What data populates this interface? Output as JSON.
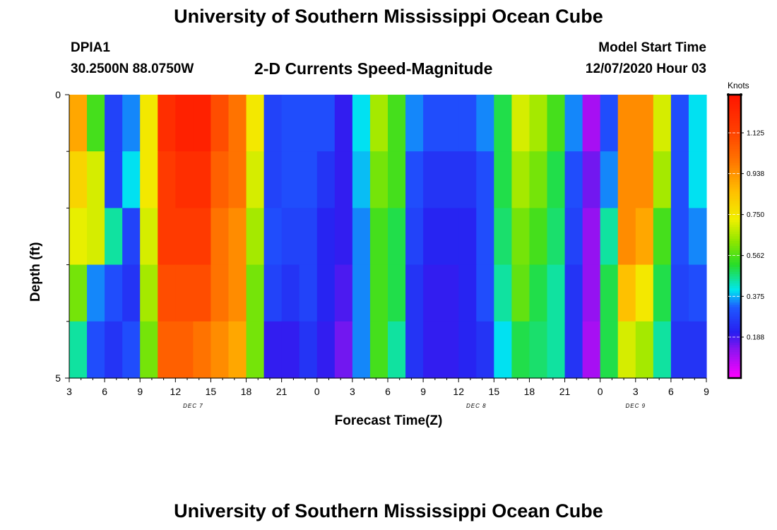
{
  "header": {
    "title": "University of Southern Mississippi Ocean Cube",
    "station": "DPIA1",
    "coords": "30.2500N 88.0750W",
    "subtitle": "2-D Currents Speed-Magnitude",
    "model_start_label": "Model Start Time",
    "model_start_value": "12/07/2020 Hour 03"
  },
  "footer": {
    "title": "University of Southern Mississippi Ocean Cube"
  },
  "chart_data": {
    "type": "heatmap",
    "title": "2-D Currents Speed-Magnitude",
    "xlabel": "Forecast Time(Z)",
    "ylabel": "Depth (ft)",
    "ylim": [
      0,
      5
    ],
    "y_ticks": [
      "0",
      "5"
    ],
    "x_tick_labels": [
      "3",
      "6",
      "9",
      "12",
      "15",
      "18",
      "21",
      "0",
      "3",
      "6",
      "9",
      "12",
      "15",
      "18",
      "21",
      "0",
      "3",
      "6",
      "9"
    ],
    "day_labels": [
      "DEC 7",
      "DEC 8",
      "DEC 9"
    ],
    "x_start_hour": 3,
    "x_end_hour": 57,
    "depth_layers": 5,
    "colorbar": {
      "unit": "Knots",
      "min": 0,
      "max": 1.3,
      "tick_labels": [
        "0.188",
        "0.375",
        "0.562",
        "0.750",
        "0.938",
        "1.125"
      ],
      "tick_values": [
        0.188,
        0.375,
        0.562,
        0.75,
        0.938,
        1.125
      ]
    },
    "speed_knots": [
      [
        0.9,
        0.55,
        0.28,
        0.35,
        0.75,
        1.2,
        1.25,
        1.25,
        1.1,
        1.0,
        0.75,
        0.28,
        0.3,
        0.3,
        0.3,
        0.2,
        0.4,
        0.65,
        0.55,
        0.35,
        0.3,
        0.3,
        0.3,
        0.35,
        0.5,
        0.7,
        0.65,
        0.55,
        0.35,
        0.1,
        0.3,
        0.95,
        0.95,
        0.7,
        0.3,
        0.4
      ],
      [
        0.8,
        0.7,
        0.28,
        0.4,
        0.75,
        1.15,
        1.2,
        1.2,
        1.05,
        1.0,
        0.7,
        0.28,
        0.3,
        0.3,
        0.25,
        0.2,
        0.38,
        0.6,
        0.55,
        0.3,
        0.25,
        0.25,
        0.25,
        0.3,
        0.5,
        0.65,
        0.6,
        0.5,
        0.3,
        0.15,
        0.35,
        0.95,
        0.95,
        0.65,
        0.3,
        0.4
      ],
      [
        0.72,
        0.7,
        0.45,
        0.28,
        0.7,
        1.15,
        1.15,
        1.15,
        1.0,
        0.95,
        0.65,
        0.3,
        0.28,
        0.28,
        0.22,
        0.2,
        0.35,
        0.55,
        0.5,
        0.28,
        0.22,
        0.22,
        0.22,
        0.3,
        0.48,
        0.6,
        0.55,
        0.48,
        0.28,
        0.12,
        0.45,
        0.95,
        0.9,
        0.55,
        0.3,
        0.35
      ],
      [
        0.6,
        0.35,
        0.3,
        0.25,
        0.65,
        1.1,
        1.1,
        1.1,
        1.0,
        0.95,
        0.6,
        0.28,
        0.25,
        0.28,
        0.22,
        0.18,
        0.35,
        0.55,
        0.5,
        0.25,
        0.2,
        0.2,
        0.22,
        0.3,
        0.45,
        0.58,
        0.5,
        0.45,
        0.25,
        0.12,
        0.5,
        0.85,
        0.75,
        0.5,
        0.28,
        0.3
      ],
      [
        0.45,
        0.3,
        0.25,
        0.3,
        0.6,
        1.05,
        1.05,
        1.0,
        0.95,
        0.9,
        0.6,
        0.2,
        0.2,
        0.25,
        0.2,
        0.15,
        0.35,
        0.55,
        0.45,
        0.25,
        0.2,
        0.2,
        0.22,
        0.25,
        0.4,
        0.5,
        0.48,
        0.45,
        0.25,
        0.1,
        0.5,
        0.7,
        0.65,
        0.45,
        0.25,
        0.25
      ]
    ]
  }
}
